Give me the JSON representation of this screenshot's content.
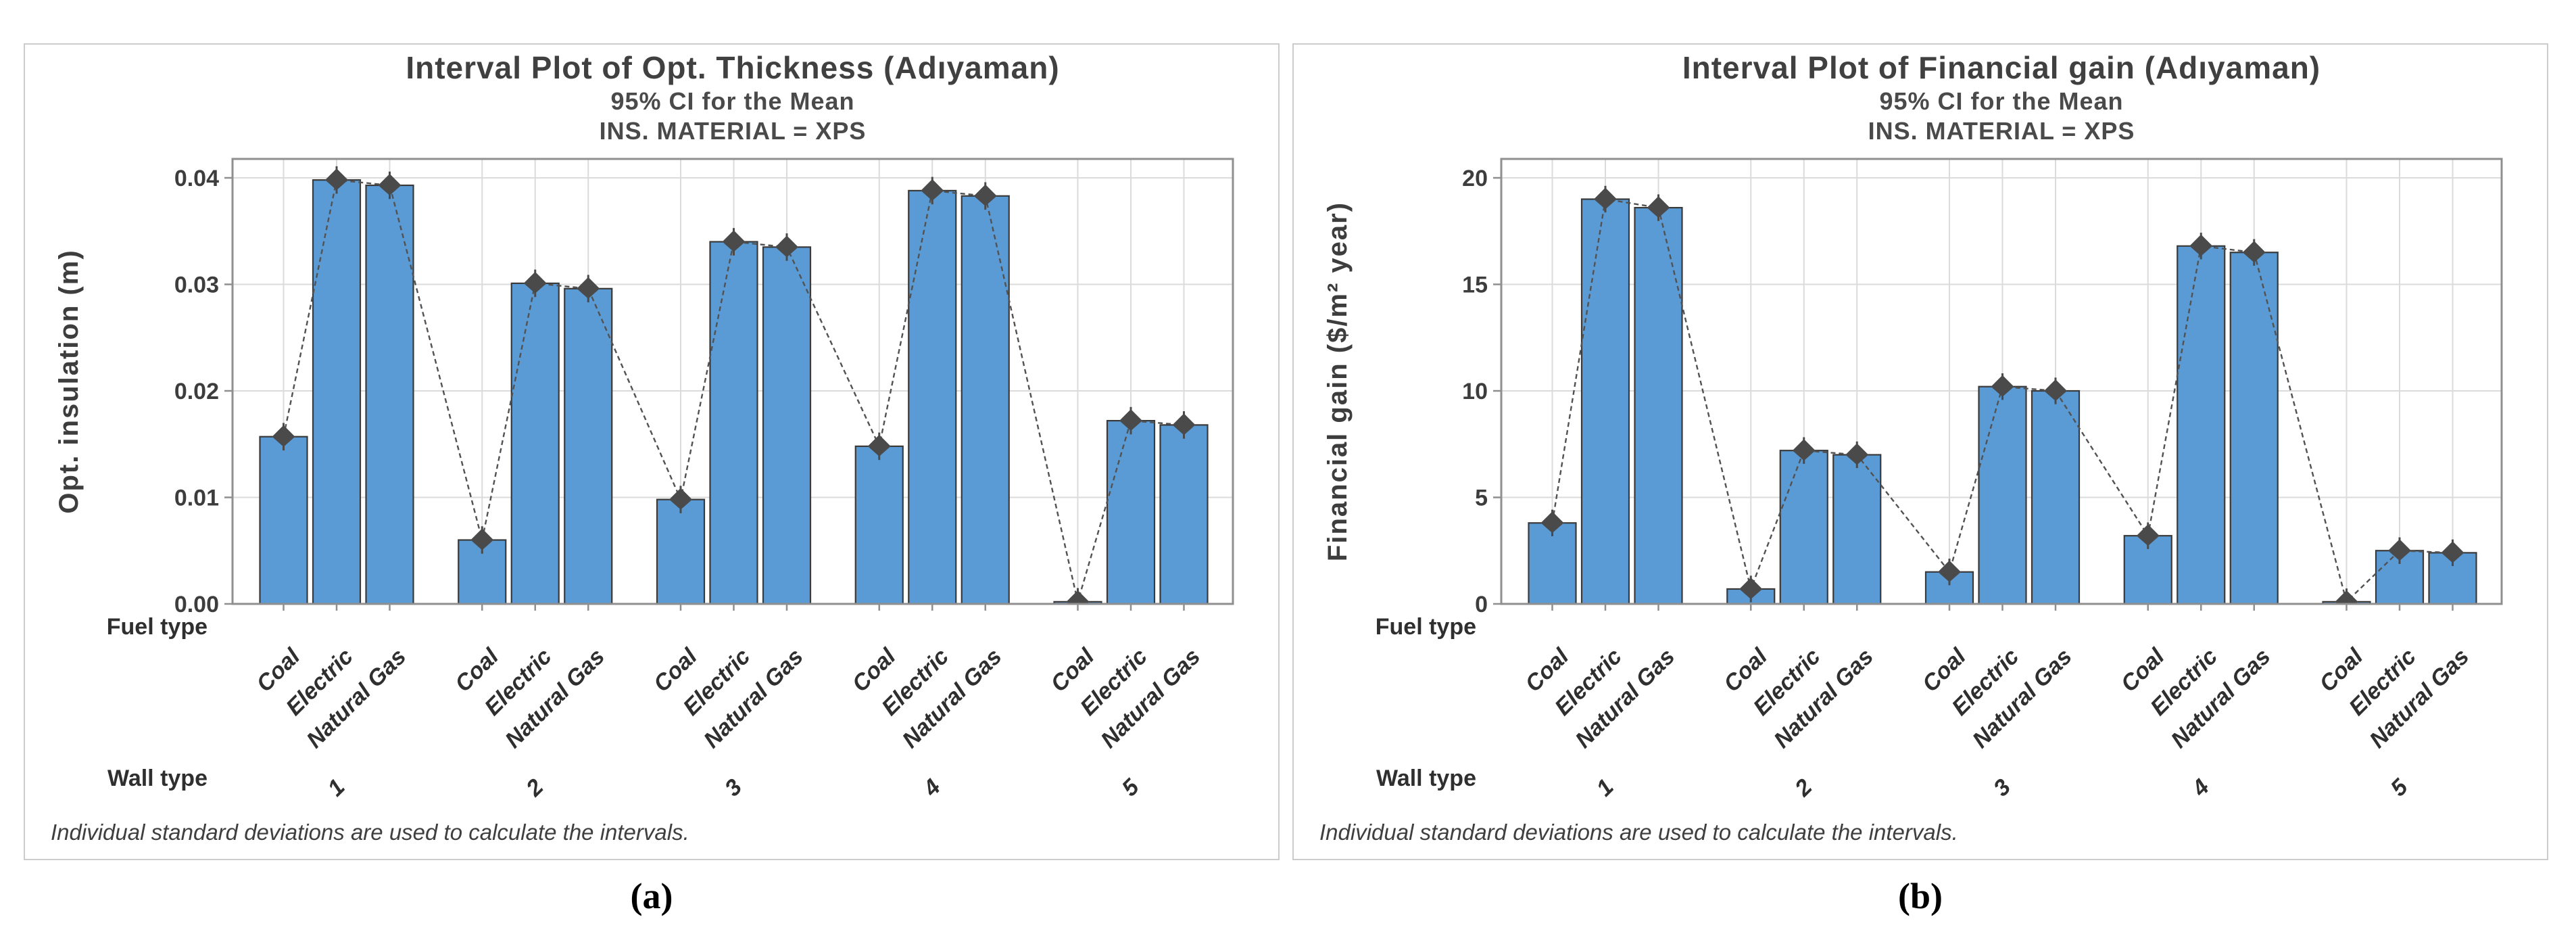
{
  "figure": {
    "caption_a": "(a)",
    "caption_b": "(b)"
  },
  "styles": {
    "bar_fill": "#5B9BD5",
    "bar_stroke": "#3A3A3A",
    "marker_color": "#4A4A4A",
    "connector_color": "#525252",
    "axis_color": "#8F8F8F",
    "grid_color": "#DBDBDB",
    "text_color": "#3D3D3D",
    "panel_border": "#CCCCCC"
  },
  "chart_data": [
    {
      "id": "a",
      "type": "bar",
      "title": "Interval Plot of Opt. Thickness (Adıyaman)",
      "subtitles": [
        "95% CI for the Mean",
        "INS. MATERIAL = XPS"
      ],
      "ylabel": "Opt. insulation (m)",
      "ylim": [
        0,
        0.0418
      ],
      "yticks": [
        "0.00",
        "0.01",
        "0.02",
        "0.03",
        "0.04"
      ],
      "ytick_values": [
        0,
        0.01,
        0.02,
        0.03,
        0.04
      ],
      "grid": "on",
      "fuel_axis_label": "Fuel type",
      "wall_axis_label": "Wall type",
      "fuel_types": [
        "Coal",
        "Electric",
        "Natural Gas"
      ],
      "wall_types": [
        "1",
        "2",
        "3",
        "4",
        "5"
      ],
      "series": [
        {
          "wall": "1",
          "values": [
            0.0157,
            0.0398,
            0.0393
          ]
        },
        {
          "wall": "2",
          "values": [
            0.006,
            0.0301,
            0.0296
          ]
        },
        {
          "wall": "3",
          "values": [
            0.0098,
            0.034,
            0.0335
          ]
        },
        {
          "wall": "4",
          "values": [
            0.0148,
            0.0388,
            0.0383
          ]
        },
        {
          "wall": "5",
          "values": [
            0.0002,
            0.0172,
            0.0168
          ]
        }
      ],
      "ci_halfwidth_approx": 0.0004,
      "marker": "diamond",
      "connector": "dashed",
      "footnote": "Individual standard deviations are used to calculate the intervals."
    },
    {
      "id": "b",
      "type": "bar",
      "title": "Interval Plot of Financial gain (Adıyaman)",
      "subtitles": [
        "95% CI for the Mean",
        "INS. MATERIAL = XPS"
      ],
      "ylabel": "Financial gain ($/m² year)",
      "ylim": [
        0,
        20.9
      ],
      "yticks": [
        "0",
        "5",
        "10",
        "15",
        "20"
      ],
      "ytick_values": [
        0,
        5,
        10,
        15,
        20
      ],
      "grid": "on",
      "fuel_axis_label": "Fuel type",
      "wall_axis_label": "Wall type",
      "fuel_types": [
        "Coal",
        "Electric",
        "Natural Gas"
      ],
      "wall_types": [
        "1",
        "2",
        "3",
        "4",
        "5"
      ],
      "series": [
        {
          "wall": "1",
          "values": [
            3.8,
            19.0,
            18.6
          ]
        },
        {
          "wall": "2",
          "values": [
            0.7,
            7.2,
            7.0
          ]
        },
        {
          "wall": "3",
          "values": [
            1.5,
            10.2,
            10.0
          ]
        },
        {
          "wall": "4",
          "values": [
            3.2,
            16.8,
            16.5
          ]
        },
        {
          "wall": "5",
          "values": [
            0.1,
            2.5,
            2.4
          ]
        }
      ],
      "ci_halfwidth_approx": 0.18,
      "marker": "diamond",
      "connector": "dashed",
      "footnote": "Individual standard deviations are used to calculate the intervals."
    }
  ]
}
